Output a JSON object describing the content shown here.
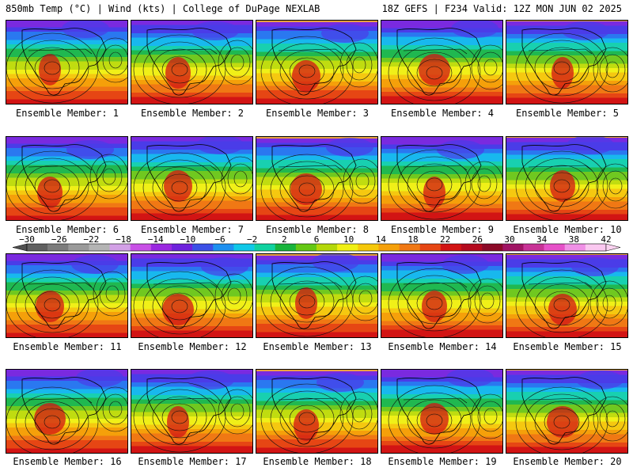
{
  "header": {
    "left": "850mb Temp (°C) | Wind (kts) | College of DuPage NEXLAB",
    "right": "18Z GEFS | F234 Valid: 12Z MON JUN 02 2025"
  },
  "caption_prefix": "Ensemble Member: ",
  "members": [
    "1",
    "2",
    "3",
    "4",
    "5",
    "6",
    "7",
    "8",
    "9",
    "10",
    "11",
    "12",
    "13",
    "14",
    "15",
    "16",
    "17",
    "18",
    "19",
    "20"
  ],
  "colorbar": {
    "labels": [
      "−30",
      "−26",
      "−22",
      "−18",
      "−14",
      "−10",
      "−6",
      "−2",
      "2",
      "6",
      "10",
      "14",
      "18",
      "22",
      "26",
      "30",
      "34",
      "38",
      "42"
    ],
    "colors": [
      "#606060",
      "#7c7c7c",
      "#9a9a9a",
      "#b4b4b4",
      "#d2a0e6",
      "#c850e6",
      "#9a28e0",
      "#6e22dc",
      "#3c50e6",
      "#1e90f0",
      "#10c8e8",
      "#10d2a0",
      "#18b43c",
      "#64c814",
      "#b4d80a",
      "#f0f014",
      "#f5c80a",
      "#f5a00a",
      "#f07814",
      "#e64614",
      "#d21414",
      "#b40a1e",
      "#8c0a28",
      "#a01464",
      "#c83296",
      "#e650c8",
      "#f090e6",
      "#fac8f0"
    ],
    "temp_min": -30,
    "temp_max": 42
  },
  "map": {
    "land_cold": "#3c7cf0",
    "land_warm": "#f07814"
  }
}
